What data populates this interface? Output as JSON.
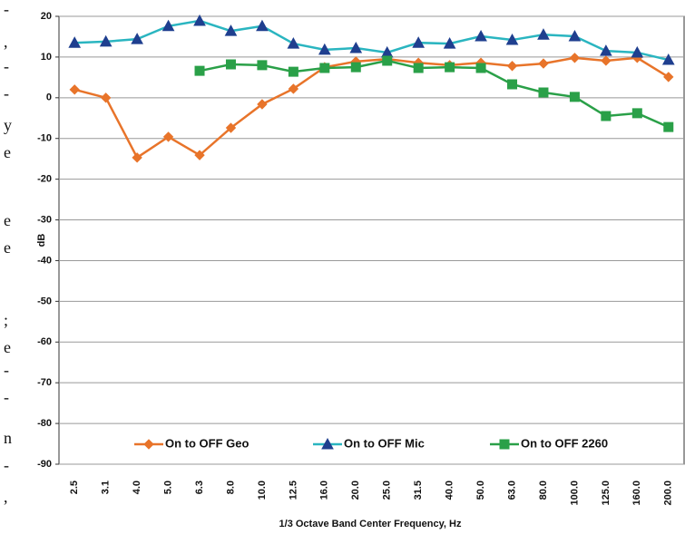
{
  "margin_fragments": [
    "-",
    ",",
    "-",
    "-",
    "y",
    "e",
    "e",
    "e",
    ";",
    "e",
    "-",
    "-",
    "n",
    "-",
    ","
  ],
  "chart_data": {
    "type": "line",
    "ylabel": "dB",
    "xlabel": "1/3 Octave Band Center Frequency, Hz",
    "categories": [
      "2.5",
      "3.1",
      "4.0",
      "5.0",
      "6.3",
      "8.0",
      "10.0",
      "12.5",
      "16.0",
      "20.0",
      "25.0",
      "31.5",
      "40.0",
      "50.0",
      "63.0",
      "80.0",
      "100.0",
      "125.0",
      "160.0",
      "200.0"
    ],
    "series": [
      {
        "name": "On to OFF Geo",
        "color": "#e8742a",
        "marker": "diamond",
        "marker_color": "#e8742a",
        "values": [
          2.0,
          0,
          -14.7,
          -9.6,
          -14.1,
          -7.4,
          -1.6,
          2.2,
          7.5,
          8.9,
          9.5,
          8.6,
          8.0,
          8.6,
          7.8,
          8.4,
          9.8,
          9.1,
          9.8,
          5.1
        ]
      },
      {
        "name": "On to OFF Mic",
        "color": "#2ab5c0",
        "marker": "triangle",
        "marker_color": "#1f3f8f",
        "values": [
          13.5,
          13.8,
          14.4,
          17.6,
          18.9,
          16.4,
          17.6,
          13.3,
          11.8,
          12.2,
          11.1,
          13.5,
          13.3,
          15.1,
          14.2,
          15.5,
          15.1,
          11.5,
          11.1,
          9.3
        ]
      },
      {
        "name": "On to OFF 2260",
        "color": "#2aa048",
        "marker": "square",
        "marker_color": "#2aa048",
        "values": [
          null,
          null,
          null,
          null,
          6.6,
          8.2,
          8.0,
          6.4,
          7.3,
          7.5,
          9.1,
          7.3,
          7.5,
          7.3,
          3.3,
          1.3,
          0.2,
          -4.5,
          -3.8,
          -7.2
        ]
      }
    ],
    "ylim": [
      -90,
      20
    ],
    "yticks": [
      20,
      10,
      0,
      -10,
      -20,
      -30,
      -40,
      -50,
      -60,
      -70,
      -80,
      -90
    ],
    "grid": true,
    "legend": "bottom"
  }
}
